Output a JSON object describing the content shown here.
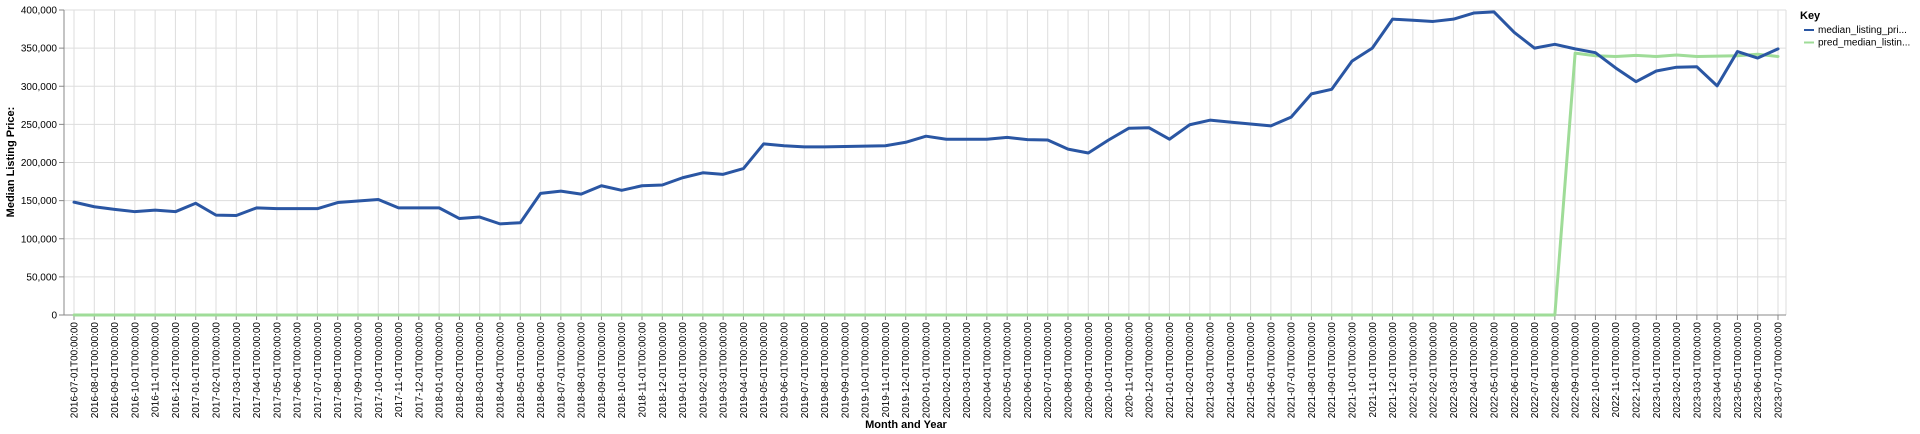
{
  "chart_data": {
    "type": "line",
    "title": "",
    "xlabel": "Month and Year",
    "ylabel": "Median Listing Price:",
    "ylim": [
      0,
      400000
    ],
    "y_ticks": [
      "0",
      "50,000",
      "100,000",
      "150,000",
      "200,000",
      "250,000",
      "300,000",
      "350,000",
      "400,000"
    ],
    "y_tick_values": [
      0,
      50000,
      100000,
      150000,
      200000,
      250000,
      300000,
      350000,
      400000
    ],
    "grid": true,
    "legend_position": "top-right",
    "legend_title": "Key",
    "categories": [
      "2016-07-01T00:00:00",
      "2016-08-01T00:00:00",
      "2016-09-01T00:00:00",
      "2016-10-01T00:00:00",
      "2016-11-01T00:00:00",
      "2016-12-01T00:00:00",
      "2017-01-01T00:00:00",
      "2017-02-01T00:00:00",
      "2017-03-01T00:00:00",
      "2017-04-01T00:00:00",
      "2017-05-01T00:00:00",
      "2017-06-01T00:00:00",
      "2017-07-01T00:00:00",
      "2017-08-01T00:00:00",
      "2017-09-01T00:00:00",
      "2017-10-01T00:00:00",
      "2017-11-01T00:00:00",
      "2017-12-01T00:00:00",
      "2018-01-01T00:00:00",
      "2018-02-01T00:00:00",
      "2018-03-01T00:00:00",
      "2018-04-01T00:00:00",
      "2018-05-01T00:00:00",
      "2018-06-01T00:00:00",
      "2018-07-01T00:00:00",
      "2018-08-01T00:00:00",
      "2018-09-01T00:00:00",
      "2018-10-01T00:00:00",
      "2018-11-01T00:00:00",
      "2018-12-01T00:00:00",
      "2019-01-01T00:00:00",
      "2019-02-01T00:00:00",
      "2019-03-01T00:00:00",
      "2019-04-01T00:00:00",
      "2019-05-01T00:00:00",
      "2019-06-01T00:00:00",
      "2019-07-01T00:00:00",
      "2019-08-01T00:00:00",
      "2019-09-01T00:00:00",
      "2019-10-01T00:00:00",
      "2019-11-01T00:00:00",
      "2019-12-01T00:00:00",
      "2020-01-01T00:00:00",
      "2020-02-01T00:00:00",
      "2020-03-01T00:00:00",
      "2020-04-01T00:00:00",
      "2020-05-01T00:00:00",
      "2020-06-01T00:00:00",
      "2020-07-01T00:00:00",
      "2020-08-01T00:00:00",
      "2020-09-01T00:00:00",
      "2020-10-01T00:00:00",
      "2020-11-01T00:00:00",
      "2020-12-01T00:00:00",
      "2021-01-01T00:00:00",
      "2021-02-01T00:00:00",
      "2021-03-01T00:00:00",
      "2021-04-01T00:00:00",
      "2021-05-01T00:00:00",
      "2021-06-01T00:00:00",
      "2021-07-01T00:00:00",
      "2021-08-01T00:00:00",
      "2021-09-01T00:00:00",
      "2021-10-01T00:00:00",
      "2021-11-01T00:00:00",
      "2021-12-01T00:00:00",
      "2022-01-01T00:00:00",
      "2022-02-01T00:00:00",
      "2022-03-01T00:00:00",
      "2022-04-01T00:00:00",
      "2022-05-01T00:00:00",
      "2022-06-01T00:00:00",
      "2022-07-01T00:00:00",
      "2022-08-01T00:00:00",
      "2022-09-01T00:00:00",
      "2022-10-01T00:00:00",
      "2022-11-01T00:00:00",
      "2022-12-01T00:00:00",
      "2023-01-01T00:00:00",
      "2023-02-01T00:00:00",
      "2023-03-01T00:00:00",
      "2023-04-01T00:00:00",
      "2023-05-01T00:00:00",
      "2023-06-01T00:00:00",
      "2023-07-01T00:00:00"
    ],
    "series": [
      {
        "name": "median_listing_pri...",
        "color": "#2a56a3",
        "values": [
          148000,
          142000,
          138500,
          135500,
          137500,
          135500,
          146500,
          131000,
          130500,
          140500,
          139500,
          139500,
          139500,
          147500,
          149500,
          151500,
          140500,
          140500,
          140500,
          126500,
          128500,
          119500,
          121000,
          159500,
          162500,
          158500,
          169500,
          163500,
          169500,
          170500,
          180000,
          186500,
          184500,
          192000,
          224500,
          222000,
          220500,
          220500,
          221000,
          221500,
          222000,
          226500,
          234500,
          230500,
          230500,
          230500,
          233000,
          230000,
          229500,
          217500,
          212500,
          229500,
          245000,
          245500,
          230500,
          249500,
          255500,
          253000,
          250500,
          248000,
          259500,
          290000,
          296000,
          333000,
          350000,
          388000,
          386500,
          385000,
          388000,
          396000,
          397500,
          370500,
          350000,
          355000,
          349000,
          344000,
          324000,
          306000,
          320000,
          325000,
          325500,
          300500,
          345500,
          337000,
          349000
        ]
      },
      {
        "name": "pred_median_listin...",
        "color": "#9fdc98",
        "values": [
          0,
          0,
          0,
          0,
          0,
          0,
          0,
          0,
          0,
          0,
          0,
          0,
          0,
          0,
          0,
          0,
          0,
          0,
          0,
          0,
          0,
          0,
          0,
          0,
          0,
          0,
          0,
          0,
          0,
          0,
          0,
          0,
          0,
          0,
          0,
          0,
          0,
          0,
          0,
          0,
          0,
          0,
          0,
          0,
          0,
          0,
          0,
          0,
          0,
          0,
          0,
          0,
          0,
          0,
          0,
          0,
          0,
          0,
          0,
          0,
          0,
          0,
          0,
          0,
          0,
          0,
          0,
          0,
          0,
          0,
          0,
          0,
          0,
          0,
          343500,
          340000,
          339000,
          340500,
          339000,
          341000,
          339000,
          339500,
          340000,
          342000,
          339000
        ]
      }
    ]
  }
}
